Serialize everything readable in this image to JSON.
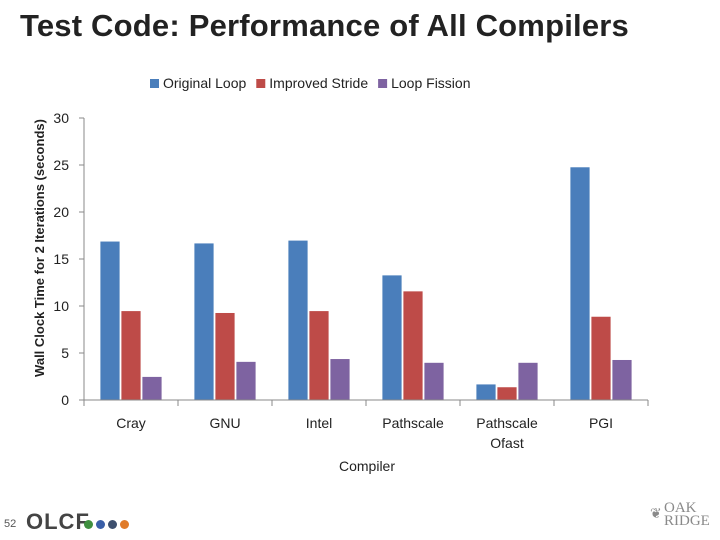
{
  "slide": {
    "title": "Test Code: Performance of All Compilers",
    "page_number": "52",
    "logo_text": "OLCF",
    "logo_dot_colors": [
      "#3f8f3f",
      "#3a5fa8",
      "#3d4f6e",
      "#e07b2a"
    ],
    "ornl_logo_line1": "OAK",
    "ornl_logo_line2": "RIDGE",
    "ornl_icon": "leaf-icon"
  },
  "chart_data": {
    "type": "bar",
    "title": "",
    "xlabel": "Compiler",
    "ylabel": "Wall Clock Time for 2 Iterations (seconds)",
    "categories": [
      "Cray",
      "GNU",
      "Intel",
      "Pathscale",
      "Pathscale Ofast",
      "PGI"
    ],
    "series": [
      {
        "name": "Original Loop",
        "color": "#4a7ebb",
        "values": [
          16.9,
          16.7,
          17.0,
          13.3,
          1.7,
          24.8
        ]
      },
      {
        "name": "Improved Stride",
        "color": "#be4b48",
        "values": [
          9.5,
          9.3,
          9.5,
          11.6,
          1.4,
          8.9
        ]
      },
      {
        "name": "Loop Fission",
        "color": "#7e63a1",
        "values": [
          2.5,
          4.1,
          4.4,
          4.0,
          4.0,
          4.3
        ]
      }
    ],
    "ylim": [
      0,
      30
    ],
    "yticks": [
      0,
      5,
      10,
      15,
      20,
      25,
      30
    ],
    "grid": false,
    "legend_position": "top-center"
  }
}
